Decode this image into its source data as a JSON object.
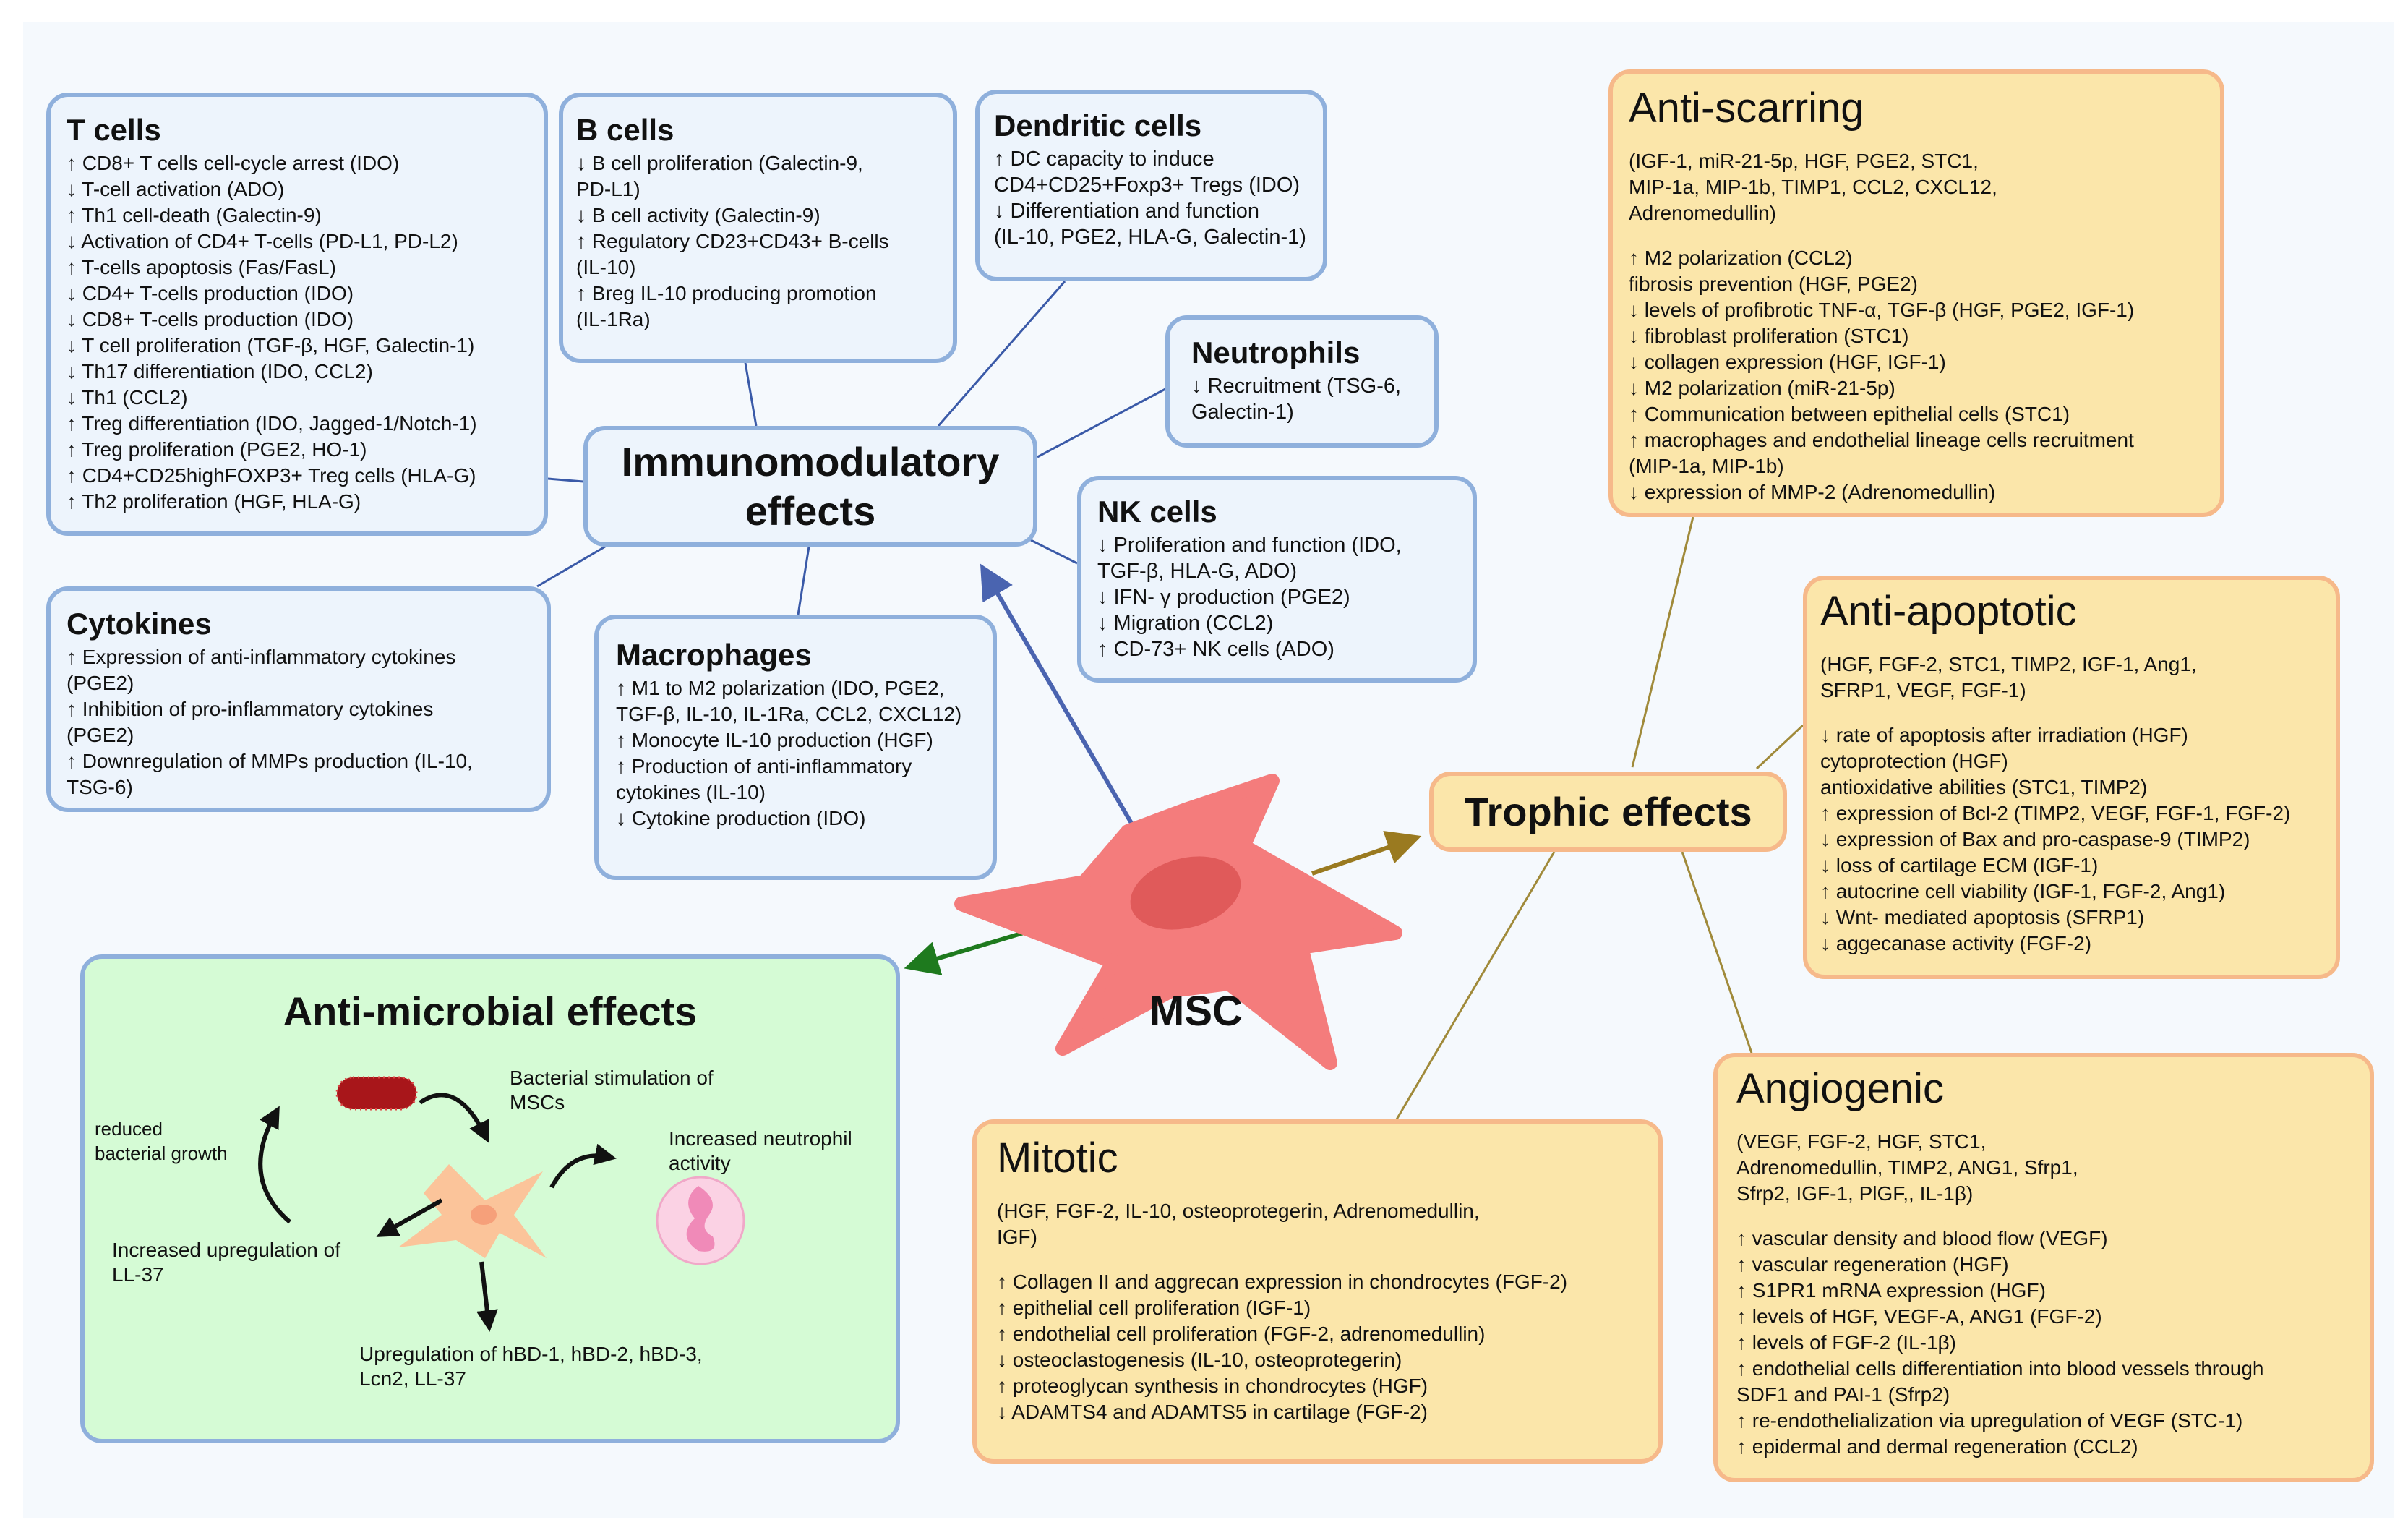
{
  "colors": {
    "immune_border": "#8fb0dc",
    "immune_fill": "#edf4fc",
    "trophic_fill": "#fbe6aa",
    "trophic_border": "#f6b98a",
    "antimicrobial_fill": "#d5fbd5",
    "msc_cell": "#f47c7c",
    "immune_arrow": "#4a64b0",
    "antimicrobial_arrow": "#1e7a1e",
    "trophic_arrow": "#9a7a20"
  },
  "msc_label": "MSC",
  "immunomodulatory": {
    "title": "Immunomodulatory\neffects",
    "t_cells": {
      "title": "T cells",
      "lines": [
        "↑ CD8+ T cells cell-cycle arrest (IDO)",
        "↓ T-cell activation (ADO)",
        "↑ Th1 cell-death (Galectin-9)",
        "↓ Activation of CD4+ T-cells (PD-L1, PD-L2)",
        "↑ T-cells apoptosis (Fas/FasL)",
        "↓ CD4+ T-cells production (IDO)",
        "↓ CD8+ T-cells  production (IDO)",
        "↓ T cell proliferation (TGF-β, HGF, Galectin-1)",
        "↓ Th17 differentiation (IDO, CCL2)",
        "↓ Th1 (CCL2)",
        "↑ Treg differentiation (IDO, Jagged-1/Notch-1)",
        "↑ Treg proliferation (PGE2, HO-1)",
        "↑ CD4+CD25highFOXP3+ Treg cells (HLA-G)",
        "↑ Th2 proliferation  (HGF, HLA-G)"
      ]
    },
    "b_cells": {
      "title": "B cells",
      "lines": [
        "↓ B cell proliferation (Galectin-9,",
        "PD-L1)",
        "↓ B cell activity (Galectin-9)",
        "↑ Regulatory CD23+CD43+ B-cells",
        "(IL-10)",
        "↑ Breg IL-10 producing promotion",
        "(IL-1Ra)"
      ]
    },
    "dendritic_cells": {
      "title": "Dendritic cells",
      "lines": [
        "↑ DC capacity to induce",
        "CD4+CD25+Foxp3+ Tregs (IDO)",
        "↓ Differentiation and function",
        "(IL-10, PGE2, HLA-G, Galectin-1)"
      ]
    },
    "neutrophils": {
      "title": "Neutrophils",
      "lines": [
        "↓ Recruitment (TSG-6,",
        "Galectin-1)"
      ]
    },
    "nk_cells": {
      "title": "NK cells",
      "lines": [
        "↓ Proliferation and function (IDO,",
        "TGF-β, HLA-G, ADO)",
        "↓ IFN- γ production (PGE2)",
        "↓ Migration (CCL2)",
        "↑ CD-73+ NK cells (ADO)"
      ]
    },
    "cytokines": {
      "title": "Cytokines",
      "lines": [
        "↑ Expression of anti-inflammatory cytokines",
        "(PGE2)",
        "↑ Inhibition of pro-inflammatory cytokines",
        "(PGE2)",
        "↑ Downregulation of MMPs production (IL-10,",
        "TSG-6)"
      ]
    },
    "macrophages": {
      "title": "Macrophages",
      "lines": [
        "↑ M1 to M2 polarization (IDO, PGE2,",
        "TGF-β, IL-10, IL-1Ra, CCL2, CXCL12)",
        "↑ Monocyte IL-10 production (HGF)",
        "↑ Production of anti-inflammatory",
        "cytokines (IL-10)",
        "↓ Cytokine production (IDO)"
      ]
    }
  },
  "antimicrobial": {
    "title": "Anti-microbial effects",
    "labels": {
      "bacterial_stimulation": "Bacterial stimulation of\nMSCs",
      "reduced_growth": "reduced\nbacterial growth",
      "neutrophil_activity": "Increased neutrophil\nactivity",
      "ll37": "Increased upregulation of\nLL-37",
      "hbd": "Upregulation of hBD-1, hBD-2, hBD-3,\nLcn2, LL-37"
    }
  },
  "trophic": {
    "title": "Trophic effects",
    "anti_scarring": {
      "title": "Anti-scarring",
      "factors": "(IGF-1, miR-21-5p, HGF, PGE2, STC1,\nMIP-1a, MIP-1b, TIMP1, CCL2, CXCL12,\nAdrenomedullin)",
      "lines": [
        "↑ M2 polarization (CCL2)",
        "fibrosis prevention  (HGF, PGE2)",
        "↓ levels of profibrotic TNF-α, TGF-β  (HGF, PGE2, IGF-1)",
        "↓ fibroblast proliferation (STC1)",
        "↓ collagen expression (HGF, IGF-1)",
        "↓  M2 polarization (miR-21-5p)",
        "↑ Communication between epithelial cells (STC1)",
        "↑ macrophages and endothelial lineage cells recruitment",
        "(MIP-1a, MIP-1b)",
        "↓ expression of MMP-2 (Adrenomedullin)"
      ]
    },
    "anti_apoptotic": {
      "title": "Anti-apoptotic",
      "factors": "(HGF, FGF-2, STC1, TIMP2, IGF-1, Ang1,\nSFRP1, VEGF, FGF-1)",
      "lines": [
        "↓ rate of apoptosis after irradiation (HGF)",
        "   cytoprotection (HGF)",
        "   antioxidative abilities (STC1, TIMP2)",
        "↑ expression of Bcl-2 (TIMP2, VEGF, FGF-1, FGF-2)",
        "↓ expression of Bax and pro-caspase-9 (TIMP2)",
        "↓ loss of cartilage ECM (IGF-1)",
        "↑ autocrine cell viability (IGF-1, FGF-2, Ang1)",
        "↓ Wnt- mediated apoptosis (SFRP1)",
        "↓ aggecanase activity (FGF-2)"
      ]
    },
    "angiogenic": {
      "title": "Angiogenic",
      "factors": "(VEGF, FGF-2, HGF, STC1,\nAdrenomedullin, TIMP2, ANG1, Sfrp1,\nSfrp2, IGF-1, PlGF,, IL-1β)",
      "lines": [
        "↑ vascular density and blood flow (VEGF)",
        "↑ vascular regeneration (HGF)",
        "↑ S1PR1 mRNA expression (HGF)",
        "↑ levels of HGF, VEGF-A, ANG1 (FGF-2)",
        "↑ levels of FGF-2 (IL-1β)",
        "↑ endothelial cells differentiation into blood vessels through",
        "SDF1 and PAI-1 (Sfrp2)",
        "↑ re-endothelialization via upregulation of VEGF (STC-1)",
        "↑ epidermal and dermal regeneration (CCL2)"
      ]
    },
    "mitotic": {
      "title": "Mitotic",
      "factors": "(HGF, FGF-2, IL-10, osteoprotegerin, Adrenomedullin,\nIGF)",
      "lines": [
        "↑ Collagen II and aggrecan expression in chondrocytes (FGF-2)",
        "↑ epithelial cell proliferation (IGF-1)",
        "↑ endothelial cell proliferation (FGF-2, adrenomedullin)",
        "↓ osteoclastogenesis (IL-10, osteoprotegerin)",
        "↑ proteoglycan synthesis in chondrocytes (HGF)",
        "↓ ADAMTS4 and ADAMTS5 in cartilage (FGF-2)"
      ]
    }
  }
}
